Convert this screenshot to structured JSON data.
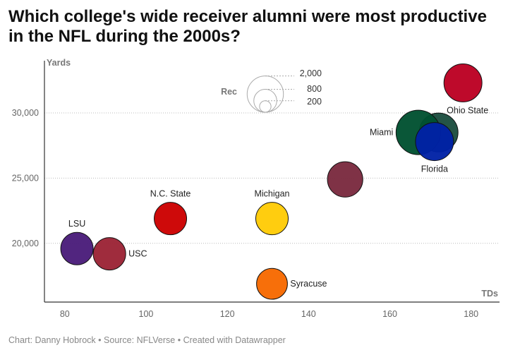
{
  "title": "Which college's wide receiver alumni were most productive in the NFL during the 2000s?",
  "footer": {
    "chart_by": "Chart: Danny Hobrock",
    "source": "Source: NFLVerse",
    "created": "Created with Datawrapper",
    "separator": "•"
  },
  "chart_data": {
    "type": "scatter",
    "title": "Which college's wide receiver alumni were most productive in the NFL during the 2000s?",
    "xlabel": "TDs",
    "ylabel": "Yards",
    "xlim": [
      75,
      187
    ],
    "ylim": [
      15500,
      34000
    ],
    "xticks": [
      80,
      100,
      120,
      140,
      160,
      180
    ],
    "yticks": [
      20000,
      25000,
      30000
    ],
    "size_variable": "Rec",
    "size_legend": [
      {
        "value": 2000,
        "label": "2,000"
      },
      {
        "value": 800,
        "label": "800"
      },
      {
        "value": 200,
        "label": "200"
      }
    ],
    "points": [
      {
        "label": "LSU",
        "x": 83,
        "y": 19600,
        "rec": 1600,
        "color": "#4a1c7a",
        "label_pos": "top"
      },
      {
        "label": "USC",
        "x": 91,
        "y": 19200,
        "rec": 1600,
        "color": "#9b2335",
        "label_pos": "right"
      },
      {
        "label": "N.C. State",
        "x": 106,
        "y": 21900,
        "rec": 1600,
        "color": "#cc0000",
        "label_pos": "top"
      },
      {
        "label": "Michigan",
        "x": 131,
        "y": 21900,
        "rec": 1600,
        "color": "#ffcb05",
        "label_pos": "top"
      },
      {
        "label": "Syracuse",
        "x": 131,
        "y": 16900,
        "rec": 1450,
        "color": "#f76900",
        "label_pos": "right"
      },
      {
        "label": "",
        "x": 149,
        "y": 24900,
        "rec": 1900,
        "color": "#7a2a3e",
        "label_pos": "none"
      },
      {
        "label": "Ohio State",
        "x": 178,
        "y": 32300,
        "rec": 2200,
        "color": "#bb0022",
        "label_pos": "below"
      },
      {
        "label": "",
        "x": 172,
        "y": 28500,
        "rec": 2300,
        "color": "#1b4d3e",
        "label_pos": "none"
      },
      {
        "label": "Miami",
        "x": 167,
        "y": 28500,
        "rec": 3000,
        "color": "#005030",
        "label_pos": "left"
      },
      {
        "label": "Florida",
        "x": 171,
        "y": 27800,
        "rec": 2200,
        "color": "#0021a5",
        "label_pos": "below"
      }
    ]
  },
  "colors": {
    "axis": "#333333",
    "grid": "#bbbbbb",
    "legend_circle": "#aaaaaa"
  }
}
